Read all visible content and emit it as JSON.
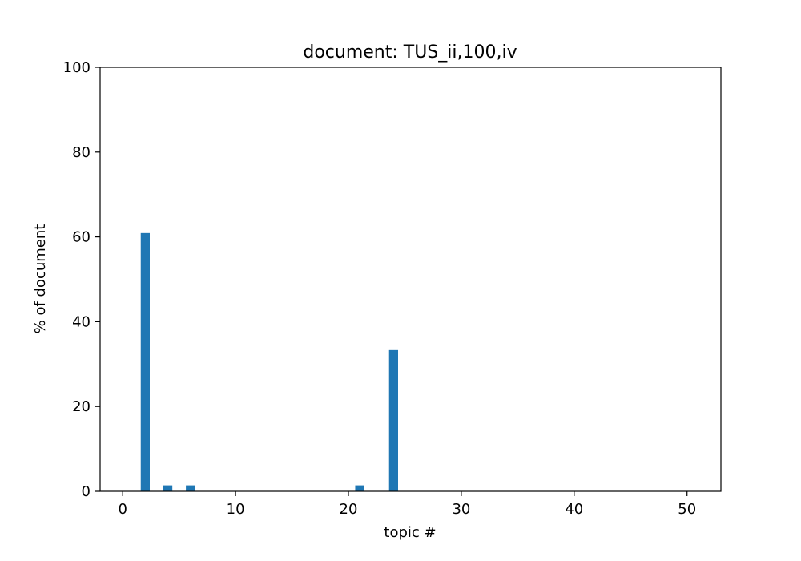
{
  "chart_data": {
    "type": "bar",
    "title": "document: TUS_ii,100,iv",
    "xlabel": "topic #",
    "ylabel": "% of document",
    "xlim": [
      -2,
      53
    ],
    "ylim": [
      0,
      100
    ],
    "xticks": [
      0,
      10,
      20,
      30,
      40,
      50
    ],
    "yticks": [
      0,
      20,
      40,
      60,
      80,
      100
    ],
    "bar_width": 0.8,
    "bar_color": "#1f77b4",
    "grid": false,
    "legend": "none",
    "x": [
      0,
      1,
      2,
      3,
      4,
      5,
      6,
      7,
      8,
      9,
      10,
      11,
      12,
      13,
      14,
      15,
      16,
      17,
      18,
      19,
      20,
      21,
      22,
      23,
      24,
      25,
      26,
      27,
      28,
      29,
      30,
      31,
      32,
      33,
      34,
      35,
      36,
      37,
      38,
      39,
      40,
      41,
      42,
      43,
      44,
      45,
      46,
      47,
      48,
      49,
      50
    ],
    "values": [
      0,
      0,
      60.9,
      0,
      1.4,
      0,
      1.4,
      0,
      0,
      0,
      0,
      0,
      0,
      0,
      0,
      0,
      0,
      0,
      0,
      0,
      0,
      1.4,
      0,
      0,
      33.3,
      0,
      0,
      0,
      0,
      0,
      0,
      0,
      0,
      0,
      0,
      0,
      0,
      0,
      0,
      0,
      0,
      0,
      0,
      0,
      0,
      0,
      0,
      0,
      0,
      0,
      0
    ]
  }
}
